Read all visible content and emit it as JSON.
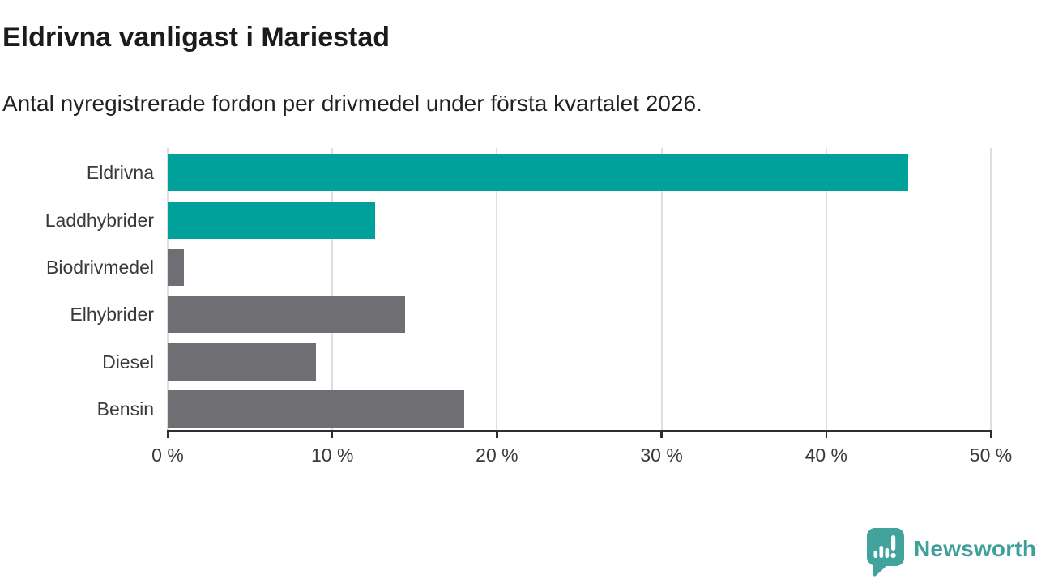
{
  "header": {
    "title": "Eldrivna vanligast i Mariestad",
    "subtitle": "Antal nyregistrerade fordon per drivmedel under första kvartalet 2026."
  },
  "chart_data": {
    "type": "bar",
    "orientation": "horizontal",
    "title": "Eldrivna vanligast i Mariestad",
    "subtitle": "Antal nyregistrerade fordon per drivmedel under första kvartalet 2026.",
    "categories": [
      "Eldrivna",
      "Laddhybrider",
      "Biodrivmedel",
      "Elhybrider",
      "Diesel",
      "Bensin"
    ],
    "values": [
      45,
      12.6,
      1,
      14.4,
      9,
      18
    ],
    "value_unit": "%",
    "bar_colors": [
      "#00a09b",
      "#00a09b",
      "#6e6e73",
      "#6e6e73",
      "#6e6e73",
      "#6e6e73"
    ],
    "highlight_color": "#00a09b",
    "neutral_color": "#6e6e73",
    "xlim": [
      0,
      50
    ],
    "x_ticks": [
      0,
      10,
      20,
      30,
      40,
      50
    ],
    "x_tick_labels": [
      "0 %",
      "10 %",
      "20 %",
      "30 %",
      "40 %",
      "50 %"
    ],
    "grid": true,
    "gridline_color": "#dedede",
    "axis_color": "#2e2e2e",
    "label_color": "#3a3a3a",
    "legend": "none",
    "data_labels": "none"
  },
  "footer": {
    "brand_name": "Newsworthy",
    "brand_color": "#3f9f99"
  }
}
